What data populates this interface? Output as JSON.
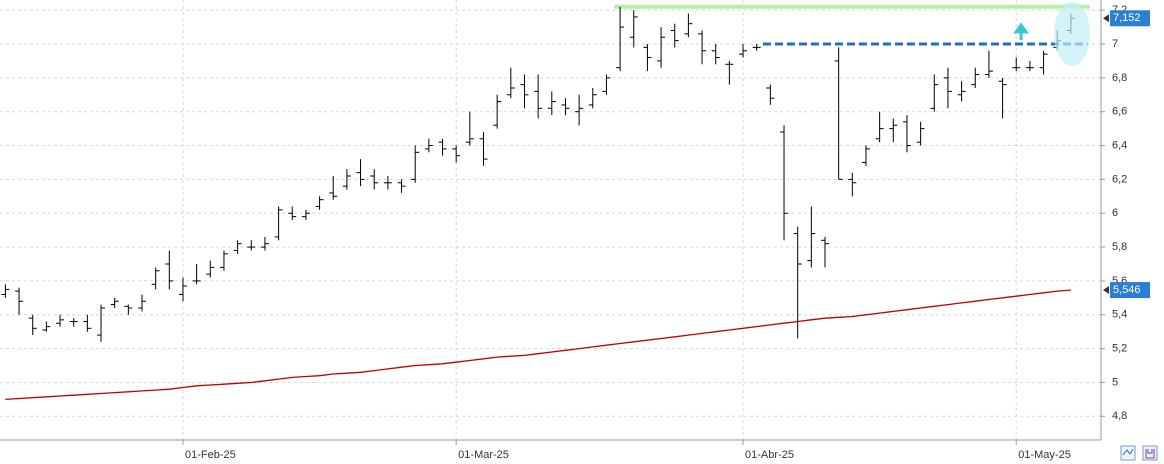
{
  "chart_data": {
    "type": "ohlc",
    "categories": [
      null,
      null,
      null,
      null,
      null,
      null,
      null,
      null,
      null,
      null,
      null,
      null,
      null,
      "01-Feb-25",
      null,
      null,
      null,
      null,
      null,
      null,
      null,
      null,
      null,
      null,
      null,
      null,
      null,
      null,
      null,
      null,
      null,
      null,
      null,
      "01-Mar-25",
      null,
      null,
      null,
      null,
      null,
      null,
      null,
      null,
      null,
      null,
      null,
      null,
      null,
      null,
      null,
      null,
      null,
      null,
      null,
      null,
      "01-Abr-25",
      null,
      null,
      null,
      null,
      null,
      null,
      null,
      null,
      null,
      null,
      null,
      null,
      null,
      null,
      null,
      null,
      null,
      null,
      null,
      "01-May-25",
      null,
      null,
      null,
      null
    ],
    "open": [
      5.52,
      5.54,
      5.38,
      5.31,
      5.35,
      5.36,
      5.36,
      5.28,
      5.46,
      5.45,
      5.44,
      5.58,
      5.7,
      5.52,
      5.6,
      5.64,
      5.68,
      5.78,
      5.8,
      5.8,
      5.86,
      6.0,
      5.98,
      6.04,
      6.12,
      6.16,
      6.24,
      6.22,
      6.18,
      6.18,
      6.2,
      6.38,
      6.42,
      6.38,
      6.42,
      6.44,
      6.52,
      6.7,
      6.76,
      6.72,
      6.62,
      6.64,
      6.6,
      6.64,
      6.72,
      6.86,
      7.04,
      6.98,
      6.9,
      7.08,
      7.06,
      7.06,
      6.96,
      6.88,
      6.94,
      6.98,
      6.74,
      6.48,
      5.88,
      5.72,
      5.84,
      6.9,
      6.2,
      6.3,
      6.44,
      6.5,
      6.54,
      6.42,
      6.62,
      6.8,
      6.7,
      6.76,
      6.82,
      6.78,
      6.86,
      6.86,
      6.86,
      6.98,
      7.08
    ],
    "high": [
      5.58,
      5.56,
      5.4,
      5.36,
      5.4,
      5.38,
      5.4,
      5.46,
      5.5,
      5.46,
      5.52,
      5.68,
      5.78,
      5.62,
      5.7,
      5.72,
      5.78,
      5.84,
      5.84,
      5.86,
      6.04,
      6.04,
      6.02,
      6.1,
      6.22,
      6.26,
      6.32,
      6.26,
      6.22,
      6.2,
      6.4,
      6.44,
      6.44,
      6.4,
      6.6,
      6.48,
      6.7,
      6.86,
      6.82,
      6.82,
      6.72,
      6.68,
      6.7,
      6.74,
      6.82,
      7.22,
      7.2,
      7.0,
      7.1,
      7.12,
      7.18,
      7.08,
      7.0,
      6.9,
      7.0,
      7.0,
      6.76,
      6.52,
      5.92,
      6.04,
      5.86,
      6.98,
      6.24,
      6.4,
      6.6,
      6.56,
      6.58,
      6.54,
      6.82,
      6.86,
      6.78,
      6.86,
      6.96,
      6.8,
      6.92,
      6.9,
      6.96,
      7.08,
      7.18
    ],
    "low": [
      5.5,
      5.4,
      5.28,
      5.3,
      5.33,
      5.33,
      5.3,
      5.24,
      5.44,
      5.4,
      5.42,
      5.55,
      5.55,
      5.48,
      5.58,
      5.62,
      5.66,
      5.76,
      5.78,
      5.78,
      5.84,
      5.96,
      5.96,
      6.02,
      6.08,
      6.14,
      6.16,
      6.14,
      6.14,
      6.12,
      6.18,
      6.36,
      6.34,
      6.3,
      6.4,
      6.28,
      6.5,
      6.68,
      6.62,
      6.56,
      6.58,
      6.58,
      6.52,
      6.62,
      6.7,
      6.84,
      6.98,
      6.84,
      6.86,
      6.98,
      7.04,
      6.88,
      6.88,
      6.76,
      6.92,
      6.96,
      6.64,
      5.84,
      5.26,
      5.68,
      5.68,
      6.2,
      6.1,
      6.28,
      6.42,
      6.42,
      6.36,
      6.4,
      6.6,
      6.62,
      6.66,
      6.74,
      6.8,
      6.56,
      6.84,
      6.84,
      6.82,
      6.96,
      7.06
    ],
    "close": [
      5.55,
      5.48,
      5.32,
      5.33,
      5.37,
      5.36,
      5.32,
      5.44,
      5.48,
      5.44,
      5.48,
      5.66,
      5.6,
      5.57,
      5.6,
      5.68,
      5.76,
      5.82,
      5.8,
      5.82,
      6.02,
      5.98,
      6.0,
      6.08,
      6.1,
      6.22,
      6.2,
      6.18,
      6.18,
      6.16,
      6.36,
      6.4,
      6.38,
      6.34,
      6.44,
      6.32,
      6.66,
      6.74,
      6.7,
      6.62,
      6.66,
      6.62,
      6.62,
      6.7,
      6.8,
      7.1,
      7.16,
      6.92,
      7.04,
      7.02,
      7.12,
      6.96,
      6.92,
      6.88,
      6.96,
      6.98,
      6.68,
      6.0,
      5.7,
      5.88,
      5.82,
      6.2,
      6.18,
      6.38,
      6.5,
      6.52,
      6.4,
      6.5,
      6.76,
      6.72,
      6.72,
      6.82,
      6.84,
      6.76,
      6.86,
      6.86,
      6.94,
      7.02,
      7.152
    ],
    "close_label": "7,152",
    "color": "#000000",
    "moving_average": {
      "color": "#c00000",
      "label": "5,546",
      "values": [
        4.9,
        4.905,
        4.91,
        4.915,
        4.92,
        4.925,
        4.93,
        4.935,
        4.94,
        4.945,
        4.95,
        4.955,
        4.96,
        4.97,
        4.98,
        4.985,
        4.99,
        4.995,
        5.0,
        5.01,
        5.02,
        5.03,
        5.035,
        5.04,
        5.05,
        5.055,
        5.06,
        5.07,
        5.08,
        5.09,
        5.1,
        5.105,
        5.11,
        5.12,
        5.13,
        5.14,
        5.15,
        5.155,
        5.16,
        5.17,
        5.18,
        5.19,
        5.2,
        5.21,
        5.22,
        5.23,
        5.24,
        5.25,
        5.26,
        5.27,
        5.28,
        5.29,
        5.3,
        5.31,
        5.32,
        5.33,
        5.34,
        5.35,
        5.36,
        5.37,
        5.38,
        5.385,
        5.39,
        5.4,
        5.41,
        5.42,
        5.43,
        5.44,
        5.45,
        5.46,
        5.47,
        5.48,
        5.49,
        5.5,
        5.51,
        5.52,
        5.53,
        5.54,
        5.546
      ]
    },
    "levels": [
      {
        "value": 7.22,
        "color": "#b6f0a8",
        "dashed": false
      },
      {
        "value": 7.0,
        "color": "#1f6fc4",
        "dashed": true
      }
    ],
    "ylim": [
      4.66,
      7.26
    ],
    "yticks": [
      {
        "value": 4.8,
        "label": "4,8"
      },
      5,
      {
        "value": 5.2,
        "label": "5,2"
      },
      {
        "value": 5.4,
        "label": "5,4"
      },
      {
        "value": 5.6,
        "label": "5,6"
      },
      {
        "value": 5.8,
        "label": "5,8"
      },
      6,
      {
        "value": 6.2,
        "label": "6,2"
      },
      {
        "value": 6.4,
        "label": "6,4"
      },
      {
        "value": 6.6,
        "label": "6,6"
      },
      {
        "value": 6.8,
        "label": "6,8"
      },
      7,
      {
        "value": 7.2,
        "label": "7,2"
      }
    ],
    "grid": true
  }
}
